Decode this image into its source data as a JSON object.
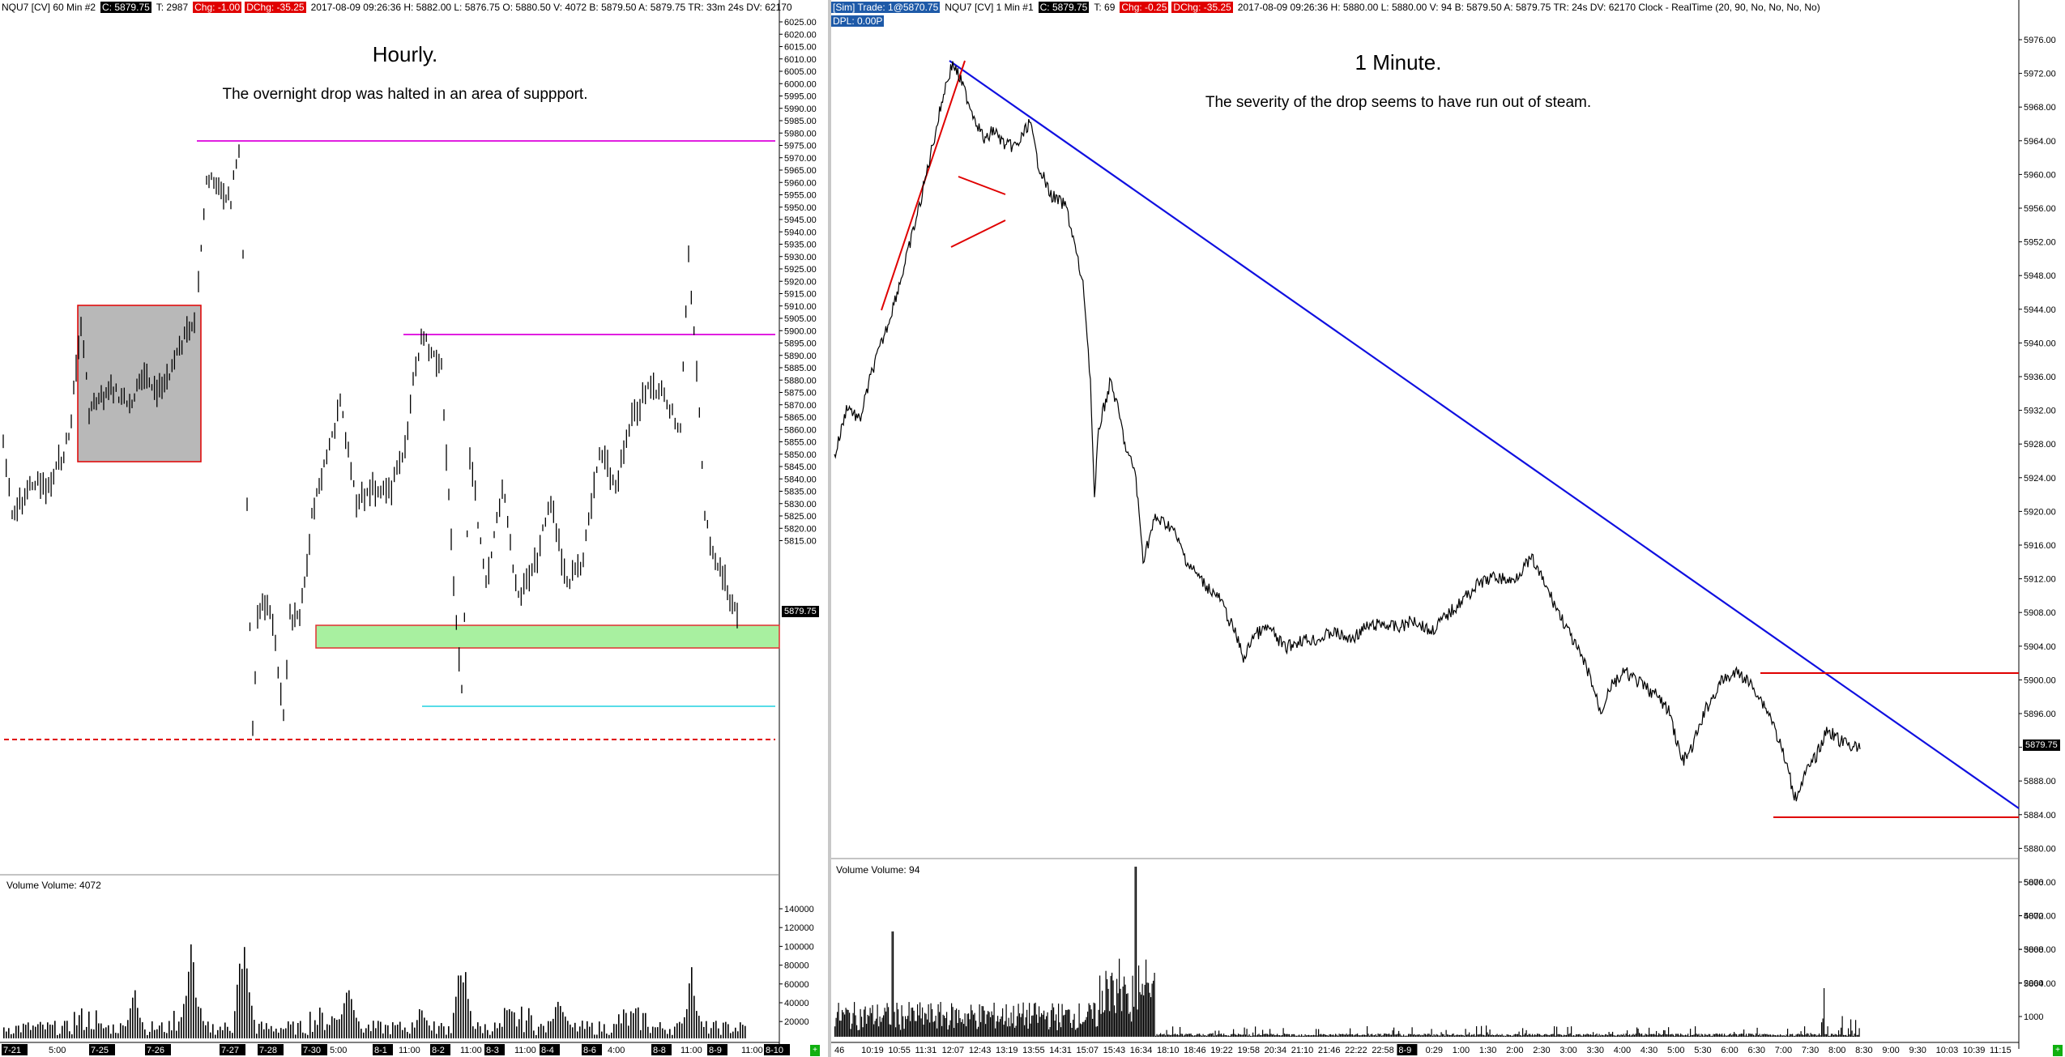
{
  "left": {
    "infobar": {
      "symbol": "NQU7 [CV]  60 Min  #2",
      "c": "C: 5879.75",
      "t": "T: 2987",
      "chg": "Chg: -1.00",
      "dchg": "DChg: -35.25",
      "rest": "2017-08-09 09:26:36  H: 5882.00  L: 5876.75  O: 5880.50  V: 4072  B: 5879.50  A: 5879.75  TR: 33m 24s  DV: 62170"
    },
    "title": "Hourly.",
    "note": "The overnight drop was halted in an area of suppport.",
    "price_tag": "5879.75",
    "volume_label": "Volume  Volume: 4072",
    "price_axis": [
      "6025.00",
      "6020.00",
      "6015.00",
      "6010.00",
      "6005.00",
      "6000.00",
      "5995.00",
      "5990.00",
      "5985.00",
      "5980.00",
      "5975.00",
      "5970.00",
      "5965.00",
      "5960.00",
      "5955.00",
      "5950.00",
      "5945.00",
      "5940.00",
      "5935.00",
      "5930.00",
      "5925.00",
      "5920.00",
      "5915.00",
      "5910.00",
      "5905.00",
      "5900.00",
      "5895.00",
      "5890.00",
      "5885.00",
      "5880.00",
      "5875.00",
      "5870.00",
      "5865.00",
      "5860.00",
      "5855.00",
      "5850.00",
      "5845.00",
      "5840.00",
      "5835.00",
      "5830.00",
      "5825.00",
      "5820.00",
      "5815.00"
    ],
    "volume_axis": [
      "140000",
      "120000",
      "100000",
      "80000",
      "60000",
      "40000",
      "20000"
    ],
    "time_axis": [
      {
        "label": "7-21",
        "boxed": true
      },
      {
        "label": "5:00",
        "boxed": false
      },
      {
        "label": "7-25",
        "boxed": true
      },
      {
        "label": "7-26",
        "boxed": true
      },
      {
        "label": "7-27",
        "boxed": true
      },
      {
        "label": "7-28",
        "boxed": true
      },
      {
        "label": "7-30",
        "boxed": true
      },
      {
        "label": "5:00",
        "boxed": false
      },
      {
        "label": "8-1",
        "boxed": true
      },
      {
        "label": "11:00",
        "boxed": false
      },
      {
        "label": "8-2",
        "boxed": true
      },
      {
        "label": "11:00",
        "boxed": false
      },
      {
        "label": "8-3",
        "boxed": true
      },
      {
        "label": "11:00",
        "boxed": false
      },
      {
        "label": "8-4",
        "boxed": true
      },
      {
        "label": "8-6",
        "boxed": true
      },
      {
        "label": "4:00",
        "boxed": false
      },
      {
        "label": "8-8",
        "boxed": true
      },
      {
        "label": "11:00",
        "boxed": false
      },
      {
        "label": "8-9",
        "boxed": true
      },
      {
        "label": "11:00",
        "boxed": false
      },
      {
        "label": "8-10",
        "boxed": true
      }
    ]
  },
  "right": {
    "infobar": {
      "sim": "[Sim]  Trade: 1@5870.75",
      "symbol": "NQU7 [CV]  1 Min   #1",
      "c": "C: 5879.75",
      "t": "T: 69",
      "chg": "Chg: -0.25",
      "dchg": "DChg: -35.25",
      "rest": "2017-08-09 09:26:36  H: 5880.00  L: 5880.00  V: 94  B: 5879.50  A: 5879.75  TR: 24s  DV: 62170  Clock - RealTime   (20, 90, No, No, No, No)",
      "dpl": "DPL: 0.00P"
    },
    "title": "1 Minute.",
    "note": "The severity of the drop seems to have run out of steam.",
    "price_tag": "5879.75",
    "volume_label": "Volume  Volume: 94",
    "price_axis": [
      "5976.00",
      "5972.00",
      "5968.00",
      "5964.00",
      "5960.00",
      "5956.00",
      "5952.00",
      "5948.00",
      "5944.00",
      "5940.00",
      "5936.00",
      "5932.00",
      "5928.00",
      "5924.00",
      "5920.00",
      "5916.00",
      "5912.00",
      "5908.00",
      "5904.00",
      "5900.00",
      "5896.00",
      "5892.00",
      "5888.00",
      "5884.00",
      "5880.00",
      "5876.00",
      "5872.00",
      "5868.00",
      "5864.00"
    ],
    "volume_axis": [
      "5000",
      "4000",
      "3000",
      "2000",
      "1000"
    ],
    "time_axis": [
      {
        "label": "46",
        "boxed": false
      },
      {
        "label": "10:19",
        "boxed": false
      },
      {
        "label": "10:55",
        "boxed": false
      },
      {
        "label": "11:31",
        "boxed": false
      },
      {
        "label": "12:07",
        "boxed": false
      },
      {
        "label": "12:43",
        "boxed": false
      },
      {
        "label": "13:19",
        "boxed": false
      },
      {
        "label": "13:55",
        "boxed": false
      },
      {
        "label": "14:31",
        "boxed": false
      },
      {
        "label": "15:07",
        "boxed": false
      },
      {
        "label": "15:43",
        "boxed": false
      },
      {
        "label": "16:34",
        "boxed": false
      },
      {
        "label": "18:10",
        "boxed": false
      },
      {
        "label": "18:46",
        "boxed": false
      },
      {
        "label": "19:22",
        "boxed": false
      },
      {
        "label": "19:58",
        "boxed": false
      },
      {
        "label": "20:34",
        "boxed": false
      },
      {
        "label": "21:10",
        "boxed": false
      },
      {
        "label": "21:46",
        "boxed": false
      },
      {
        "label": "22:22",
        "boxed": false
      },
      {
        "label": "22:58",
        "boxed": false
      },
      {
        "label": "8-9",
        "boxed": true
      },
      {
        "label": "0:29",
        "boxed": false
      },
      {
        "label": "1:00",
        "boxed": false
      },
      {
        "label": "1:30",
        "boxed": false
      },
      {
        "label": "2:00",
        "boxed": false
      },
      {
        "label": "2:30",
        "boxed": false
      },
      {
        "label": "3:00",
        "boxed": false
      },
      {
        "label": "3:30",
        "boxed": false
      },
      {
        "label": "4:00",
        "boxed": false
      },
      {
        "label": "4:30",
        "boxed": false
      },
      {
        "label": "5:00",
        "boxed": false
      },
      {
        "label": "5:30",
        "boxed": false
      },
      {
        "label": "6:00",
        "boxed": false
      },
      {
        "label": "6:30",
        "boxed": false
      },
      {
        "label": "7:00",
        "boxed": false
      },
      {
        "label": "7:30",
        "boxed": false
      },
      {
        "label": "8:00",
        "boxed": false
      },
      {
        "label": "8:30",
        "boxed": false
      },
      {
        "label": "9:00",
        "boxed": false
      },
      {
        "label": "9:30",
        "boxed": false
      },
      {
        "label": "10:03",
        "boxed": false
      },
      {
        "label": "10:39",
        "boxed": false
      },
      {
        "label": "11:15",
        "boxed": false
      }
    ]
  },
  "colors": {
    "magenta_line": "#e020e0",
    "support_zone": "#a8f0a0",
    "support_border": "#e03030",
    "cyan_line": "#20d0e0",
    "red_dashed": "#e00000",
    "gray_box": "#b8b8b8",
    "trendline_blue": "#1010e0",
    "red_line": "#e00000"
  }
}
